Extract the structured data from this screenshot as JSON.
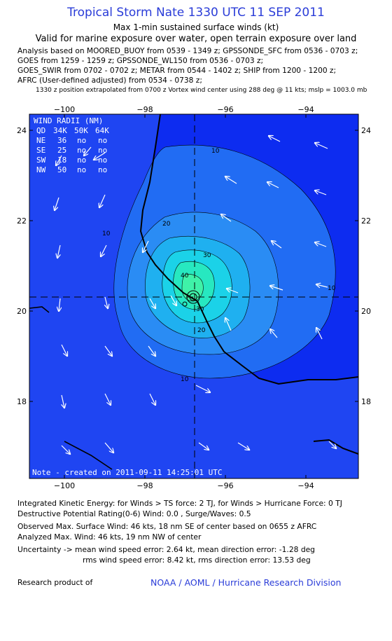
{
  "title": "Tropical Storm Nate 1330 UTC 11 SEP 2011",
  "subtitle1": "Max 1-min sustained surface winds (kt)",
  "subtitle2": "Valid for marine exposure over water, open terrain exposure over land",
  "analysis_lines": [
    "Analysis based on MOORED_BUOY from 0539 - 1349 z; GPSSONDE_SFC from 0536 - 0703 z;",
    "GOES from 1259 - 1259 z; GPSSONDE_WL150 from 0536 - 0703 z;",
    "GOES_SWIR from 0702 - 0702 z; METAR from 0544 - 1402 z; SHIP from 1200 - 1200 z;",
    "AFRC (User-defined adjusted) from 0534 - 0738 z;"
  ],
  "position_note": "1330 z position extrapolated from 0700 z Vortex wind center using 288 deg @ 11 kts; mslp = 1003.0 mb",
  "map": {
    "lon_labels": [
      "−100",
      "−98",
      "−96",
      "−94"
    ],
    "lat_labels": [
      "24",
      "22",
      "20",
      "18"
    ],
    "contour_labels": [
      "10",
      "20",
      "30",
      "40",
      "10",
      "10",
      "20",
      "30",
      "10"
    ],
    "wind_radii": {
      "header": "WIND RADII (NM)",
      "columns": [
        "QD",
        "34K",
        "50K",
        "64K"
      ],
      "rows": [
        [
          "NE",
          "36",
          "no",
          "no"
        ],
        [
          "SE",
          "25",
          "no",
          "no"
        ],
        [
          "SW",
          "18",
          "no",
          "no"
        ],
        [
          "NW",
          "50",
          "no",
          "no"
        ]
      ]
    },
    "created_note": "Note - created on 2011-09-11 14:25:01 UTC",
    "colors": {
      "ocean": "#0d2cf0",
      "land": "#1f45f2",
      "coast": "#000000"
    }
  },
  "footer": {
    "ike": "Integrated Kinetic Energy:  for Winds > TS force: 2 TJ,  for Winds > Hurricane Force: 0 TJ",
    "dpr": "Destructive Potential Rating(0-6)   Wind: 0.0 , Surge/Waves: 0.5",
    "obs_max": "Observed Max. Surface Wind: 46 kts, 18 nm SE of center based on 0655 z AFRC",
    "ana_max": "Analyzed Max. Wind: 46 kts, 19 nm NW of center",
    "unc1": "Uncertainty -> mean wind speed error: 2.64 kt,   mean direction error:  -1.28 deg",
    "unc2": "rms wind speed error: 8.42 kt,   rms direction error: 13.53 deg",
    "research": "Research product of",
    "org": "NOAA / AOML / Hurricane Research Division"
  }
}
